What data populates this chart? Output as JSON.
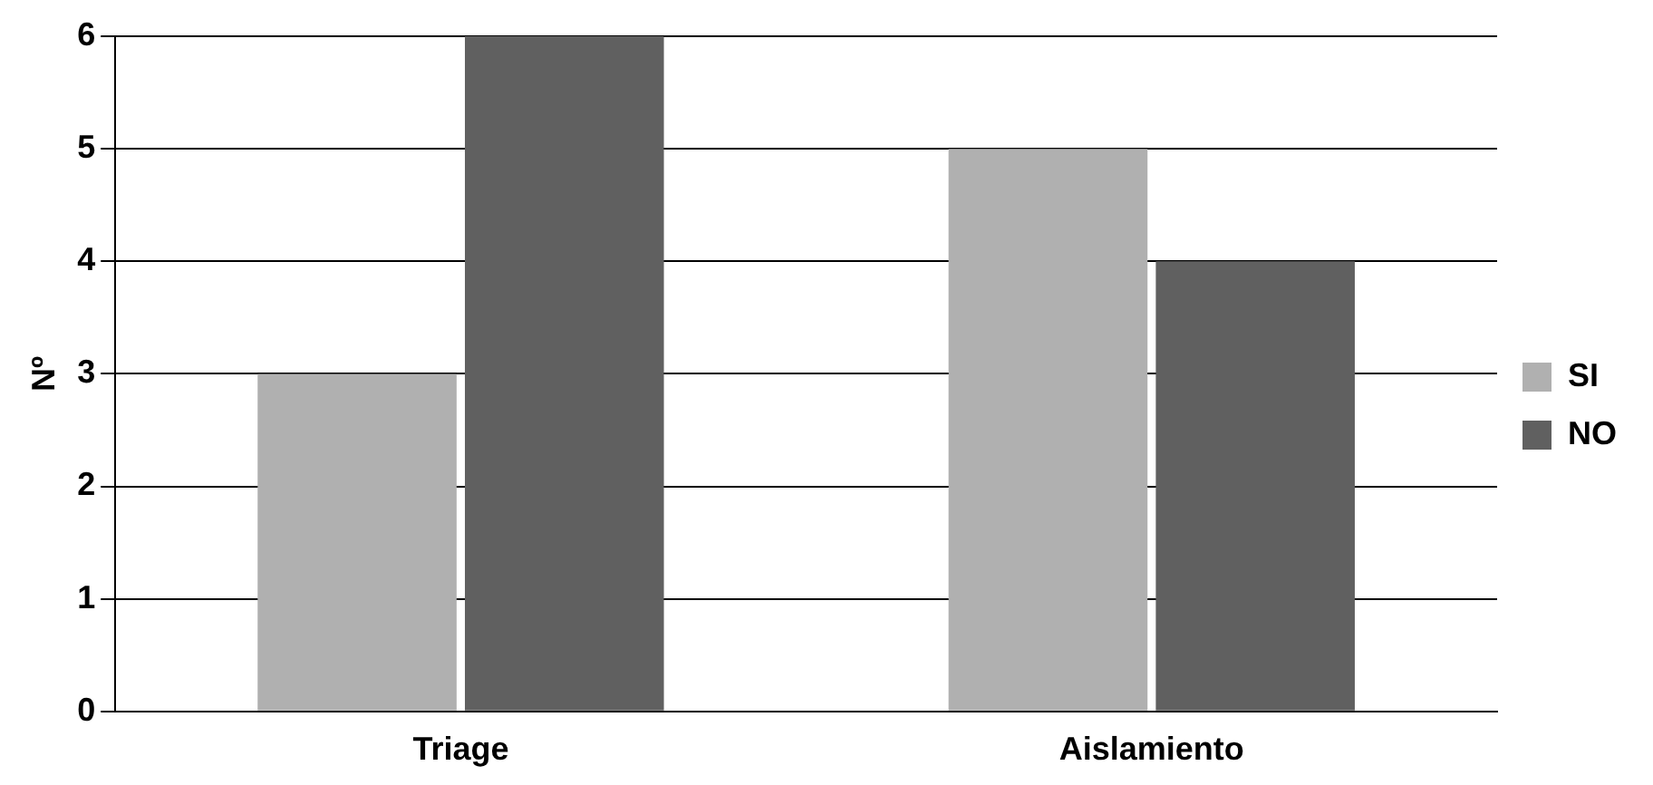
{
  "chart_data": {
    "type": "bar",
    "ylabel": "Nº",
    "categories": [
      "Triage",
      "Aislamiento"
    ],
    "series": [
      {
        "name": "SI",
        "color": "#b0b0b0",
        "values": [
          3,
          5
        ]
      },
      {
        "name": "NO",
        "color": "#606060",
        "values": [
          6,
          4
        ]
      }
    ],
    "ylim": [
      0,
      6
    ],
    "yticks": [
      0,
      1,
      2,
      3,
      4,
      5,
      6
    ],
    "grid": "y",
    "legend": "right"
  }
}
